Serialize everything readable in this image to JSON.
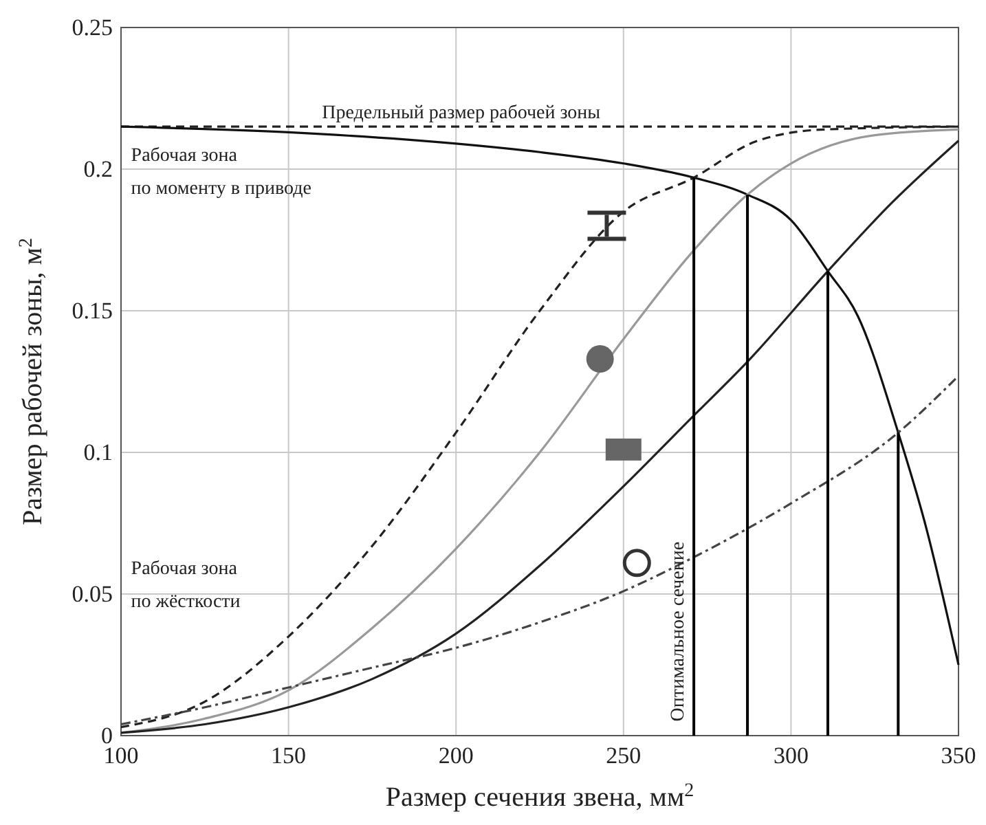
{
  "chart_data": {
    "type": "line",
    "xlabel": "Размер сечения звена, мм$^{2}$",
    "ylabel": "Размер рабочей зоны, м$^{2}$",
    "xlim": [
      100,
      350
    ],
    "ylim": [
      0,
      0.25
    ],
    "xticks": [
      100,
      150,
      200,
      250,
      300,
      350
    ],
    "yticks": [
      0,
      0.05,
      0.1,
      0.15,
      0.2,
      0.25
    ],
    "grid": true,
    "series": [
      {
        "color": "#222222",
        "line_style": "dashed",
        "x": [
          100,
          350
        ],
        "values": [
          0.215,
          0.215
        ]
      },
      {
        "color": "#111111",
        "line_style": "solid",
        "x": [
          100,
          150,
          200,
          225,
          250,
          271,
          287,
          300,
          311,
          320,
          332,
          340,
          350
        ],
        "values": [
          0.215,
          0.213,
          0.209,
          0.206,
          0.202,
          0.197,
          0.191,
          0.182,
          0.164,
          0.148,
          0.107,
          0.075,
          0.025
        ]
      },
      {
        "color": "#222222",
        "line_style": "dashed",
        "x": [
          100,
          125,
          150,
          175,
          200,
          225,
          250,
          271,
          290,
          310,
          350
        ],
        "values": [
          0.003,
          0.012,
          0.035,
          0.067,
          0.107,
          0.15,
          0.185,
          0.197,
          0.21,
          0.214,
          0.215
        ]
      },
      {
        "color": "#999999",
        "line_style": "solid",
        "x": [
          100,
          125,
          150,
          175,
          200,
          225,
          250,
          270,
          287,
          300,
          325,
          350
        ],
        "values": [
          0.001,
          0.006,
          0.016,
          0.038,
          0.066,
          0.1,
          0.14,
          0.17,
          0.191,
          0.202,
          0.212,
          0.214
        ]
      },
      {
        "color": "#222222",
        "line_style": "solid",
        "x": [
          100,
          125,
          150,
          175,
          200,
          225,
          250,
          271,
          287,
          311,
          330,
          350
        ],
        "values": [
          0.001,
          0.004,
          0.01,
          0.02,
          0.036,
          0.06,
          0.088,
          0.113,
          0.132,
          0.164,
          0.188,
          0.21
        ]
      },
      {
        "color": "#444444",
        "line_style": "dashdot",
        "x": [
          100,
          125,
          150,
          175,
          200,
          225,
          250,
          271,
          300,
          332,
          350
        ],
        "values": [
          0.004,
          0.01,
          0.017,
          0.024,
          0.031,
          0.04,
          0.051,
          0.063,
          0.082,
          0.107,
          0.127
        ]
      },
      {
        "color": "#000000",
        "line_style": "solid",
        "x": [
          271,
          271
        ],
        "values": [
          0,
          0.197
        ]
      },
      {
        "color": "#000000",
        "line_style": "solid",
        "x": [
          287,
          287
        ],
        "values": [
          0,
          0.191
        ]
      },
      {
        "color": "#000000",
        "line_style": "solid",
        "x": [
          311,
          311
        ],
        "values": [
          0,
          0.164
        ]
      },
      {
        "color": "#000000",
        "line_style": "solid",
        "x": [
          332,
          332
        ],
        "values": [
          0,
          0.107
        ]
      }
    ],
    "annotations": [
      "Предельный размер рабочей зоны",
      "Рабочая зона\nпо моменту в приводе",
      "Рабочая зона\nпо жёсткости",
      "Оптимальное сечение"
    ]
  }
}
